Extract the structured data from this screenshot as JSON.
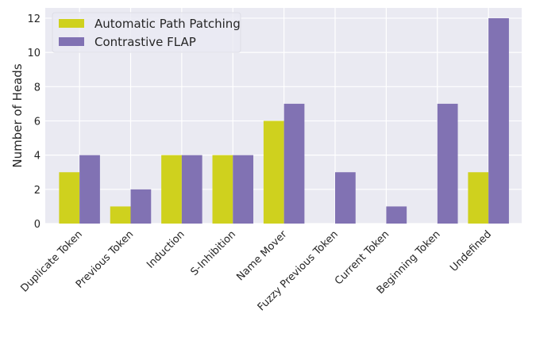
{
  "chart_data": {
    "type": "bar",
    "title": "",
    "xlabel": "",
    "ylabel": "Number of Heads",
    "ylim": [
      0,
      12.6
    ],
    "yticks": [
      0,
      2,
      4,
      6,
      8,
      10,
      12
    ],
    "grid": true,
    "legend_position": "top-left",
    "categories": [
      "Duplicate Token",
      "Previous Token",
      "Induction",
      "S-Inhibition",
      "Name Mover",
      "Fuzzy Previous Token",
      "Current Token",
      "Beginning Token",
      "Undefined"
    ],
    "series": [
      {
        "name": "Automatic Path Patching",
        "color": "#cfd11e",
        "values": [
          3,
          1,
          4,
          4,
          6,
          0,
          0,
          0,
          3
        ]
      },
      {
        "name": "Contrastive FLAP",
        "color": "#8172b3",
        "values": [
          4,
          2,
          4,
          4,
          7,
          3,
          1,
          7,
          12
        ]
      }
    ],
    "background_color": "#eaeaf2"
  }
}
